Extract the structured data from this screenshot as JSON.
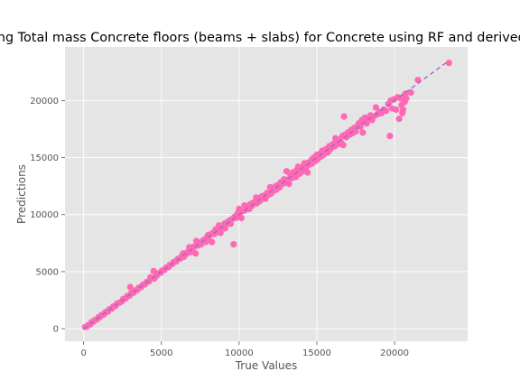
{
  "chart_data": {
    "type": "scatter",
    "title": "Predicting Total mass Concrete floors (beams + slabs) for Concrete using RF and derived features",
    "xlabel": "True Values",
    "ylabel": "Predictions",
    "xlim": [
      -1200,
      24700
    ],
    "ylim": [
      -1100,
      24700
    ],
    "xticks": [
      0,
      5000,
      10000,
      15000,
      20000
    ],
    "yticks": [
      0,
      5000,
      10000,
      15000,
      20000
    ],
    "grid": true,
    "colors": {
      "background": "#e5e5e5",
      "grid": "#ffffff",
      "points": "#ff69b4",
      "reference_line": "#9467bd"
    },
    "reference_line": {
      "x": [
        0,
        23500
      ],
      "y": [
        0,
        23500
      ],
      "style": "dashed"
    },
    "series": [
      {
        "points": [
          [
            100,
            150
          ],
          [
            200,
            180
          ],
          [
            300,
            320
          ],
          [
            420,
            380
          ],
          [
            500,
            560
          ],
          [
            620,
            600
          ],
          [
            700,
            740
          ],
          [
            850,
            820
          ],
          [
            950,
            1000
          ],
          [
            1050,
            1020
          ],
          [
            1150,
            1200
          ],
          [
            1300,
            1260
          ],
          [
            1400,
            1450
          ],
          [
            1550,
            1500
          ],
          [
            1650,
            1700
          ],
          [
            1800,
            1760
          ],
          [
            1900,
            1950
          ],
          [
            2050,
            2000
          ],
          [
            2150,
            2200
          ],
          [
            2300,
            2280
          ],
          [
            2450,
            2400
          ],
          [
            2550,
            2600
          ],
          [
            2700,
            2650
          ],
          [
            2800,
            2850
          ],
          [
            2950,
            2900
          ],
          [
            3000,
            3650
          ],
          [
            3050,
            3100
          ],
          [
            3200,
            3150
          ],
          [
            3300,
            3350
          ],
          [
            3450,
            3400
          ],
          [
            3550,
            3600
          ],
          [
            3700,
            3650
          ],
          [
            3800,
            3850
          ],
          [
            3950,
            3900
          ],
          [
            4050,
            4100
          ],
          [
            4200,
            4150
          ],
          [
            4300,
            4500
          ],
          [
            4400,
            4450
          ],
          [
            4500,
            5050
          ],
          [
            4550,
            4400
          ],
          [
            4700,
            4650
          ],
          [
            4800,
            4850
          ],
          [
            4950,
            4900
          ],
          [
            5050,
            5100
          ],
          [
            5200,
            5150
          ],
          [
            5300,
            5350
          ],
          [
            5450,
            5400
          ],
          [
            5550,
            5600
          ],
          [
            5700,
            5650
          ],
          [
            5800,
            5850
          ],
          [
            5950,
            5900
          ],
          [
            6050,
            6100
          ],
          [
            6200,
            6150
          ],
          [
            6300,
            6350
          ],
          [
            6400,
            6600
          ],
          [
            6450,
            6300
          ],
          [
            6600,
            6550
          ],
          [
            6700,
            6750
          ],
          [
            6800,
            7150
          ],
          [
            6850,
            6700
          ],
          [
            7000,
            6950
          ],
          [
            7100,
            7200
          ],
          [
            7200,
            6600
          ],
          [
            7250,
            7700
          ],
          [
            7350,
            7300
          ],
          [
            7450,
            7500
          ],
          [
            7550,
            7400
          ],
          [
            7650,
            7700
          ],
          [
            7750,
            7800
          ],
          [
            7850,
            7600
          ],
          [
            7900,
            7950
          ],
          [
            8000,
            8200
          ],
          [
            8050,
            7800
          ],
          [
            8150,
            8250
          ],
          [
            8250,
            7600
          ],
          [
            8300,
            8400
          ],
          [
            8400,
            8300
          ],
          [
            8500,
            8700
          ],
          [
            8600,
            8500
          ],
          [
            8700,
            9050
          ],
          [
            8800,
            8400
          ],
          [
            8850,
            8900
          ],
          [
            8950,
            9000
          ],
          [
            9050,
            9200
          ],
          [
            9100,
            8800
          ],
          [
            9200,
            9300
          ],
          [
            9300,
            9250
          ],
          [
            9400,
            9500
          ],
          [
            9450,
            9200
          ],
          [
            9550,
            9600
          ],
          [
            9650,
            7400
          ],
          [
            9700,
            9800
          ],
          [
            9800,
            9700
          ],
          [
            9900,
            10100
          ],
          [
            9950,
            9800
          ],
          [
            10000,
            10500
          ],
          [
            10050,
            10200
          ],
          [
            10150,
            9700
          ],
          [
            10200,
            10300
          ],
          [
            10300,
            10350
          ],
          [
            10350,
            10800
          ],
          [
            10450,
            10450
          ],
          [
            10550,
            10600
          ],
          [
            10650,
            10500
          ],
          [
            10700,
            10900
          ],
          [
            10800,
            10750
          ],
          [
            10900,
            11050
          ],
          [
            11000,
            10950
          ],
          [
            11100,
            11500
          ],
          [
            11150,
            11000
          ],
          [
            11250,
            11300
          ],
          [
            11350,
            11200
          ],
          [
            11450,
            11600
          ],
          [
            11550,
            11450
          ],
          [
            11650,
            11700
          ],
          [
            11700,
            11400
          ],
          [
            11800,
            11900
          ],
          [
            11900,
            11750
          ],
          [
            12000,
            12400
          ],
          [
            12050,
            11850
          ],
          [
            12150,
            12250
          ],
          [
            12250,
            12100
          ],
          [
            12350,
            12500
          ],
          [
            12400,
            12200
          ],
          [
            12500,
            12600
          ],
          [
            12600,
            12400
          ],
          [
            12700,
            12850
          ],
          [
            12800,
            12700
          ],
          [
            12900,
            13100
          ],
          [
            12950,
            12800
          ],
          [
            13050,
            13800
          ],
          [
            13150,
            13050
          ],
          [
            13200,
            12700
          ],
          [
            13300,
            13400
          ],
          [
            13400,
            13200
          ],
          [
            13450,
            13700
          ],
          [
            13550,
            13400
          ],
          [
            13650,
            13300
          ],
          [
            13700,
            13900
          ],
          [
            13800,
            14200
          ],
          [
            13900,
            13600
          ],
          [
            13950,
            14050
          ],
          [
            14050,
            13800
          ],
          [
            14150,
            14300
          ],
          [
            14200,
            14500
          ],
          [
            14300,
            14100
          ],
          [
            14400,
            13700
          ],
          [
            14450,
            14550
          ],
          [
            14550,
            14400
          ],
          [
            14650,
            14800
          ],
          [
            14700,
            14500
          ],
          [
            14800,
            15000
          ],
          [
            14900,
            14700
          ],
          [
            15000,
            15250
          ],
          [
            15050,
            14850
          ],
          [
            15150,
            15300
          ],
          [
            15250,
            15100
          ],
          [
            15350,
            15600
          ],
          [
            15400,
            15200
          ],
          [
            15500,
            15500
          ],
          [
            15600,
            15750
          ],
          [
            15700,
            15450
          ],
          [
            15800,
            16000
          ],
          [
            15850,
            15700
          ],
          [
            15950,
            15900
          ],
          [
            16050,
            16200
          ],
          [
            16150,
            16000
          ],
          [
            16200,
            16700
          ],
          [
            16300,
            16400
          ],
          [
            16400,
            16200
          ],
          [
            16500,
            16600
          ],
          [
            16550,
            16300
          ],
          [
            16650,
            16900
          ],
          [
            16700,
            16100
          ],
          [
            16750,
            18600
          ],
          [
            16800,
            17000
          ],
          [
            16900,
            16800
          ],
          [
            17000,
            17200
          ],
          [
            17100,
            17000
          ],
          [
            17200,
            17400
          ],
          [
            17300,
            17150
          ],
          [
            17400,
            17600
          ],
          [
            17500,
            17300
          ],
          [
            17600,
            17750
          ],
          [
            17700,
            18000
          ],
          [
            17800,
            17700
          ],
          [
            17900,
            18300
          ],
          [
            17950,
            17200
          ],
          [
            18050,
            18200
          ],
          [
            18100,
            18500
          ],
          [
            18200,
            18000
          ],
          [
            18300,
            18400
          ],
          [
            18450,
            18700
          ],
          [
            18550,
            18300
          ],
          [
            18650,
            18600
          ],
          [
            18800,
            19400
          ],
          [
            18900,
            18800
          ],
          [
            19050,
            19000
          ],
          [
            19150,
            18900
          ],
          [
            19300,
            19200
          ],
          [
            19450,
            19100
          ],
          [
            19600,
            19700
          ],
          [
            19700,
            16900
          ],
          [
            19750,
            20000
          ],
          [
            19850,
            19300
          ],
          [
            19950,
            20100
          ],
          [
            20100,
            19200
          ],
          [
            20200,
            20300
          ],
          [
            20300,
            18400
          ],
          [
            20400,
            20200
          ],
          [
            20450,
            19600
          ],
          [
            20500,
            18900
          ],
          [
            20550,
            19200
          ],
          [
            20600,
            20400
          ],
          [
            20650,
            19900
          ],
          [
            20700,
            20600
          ],
          [
            20750,
            20200
          ],
          [
            21050,
            20700
          ],
          [
            21500,
            21800
          ],
          [
            23500,
            23300
          ]
        ]
      }
    ]
  }
}
